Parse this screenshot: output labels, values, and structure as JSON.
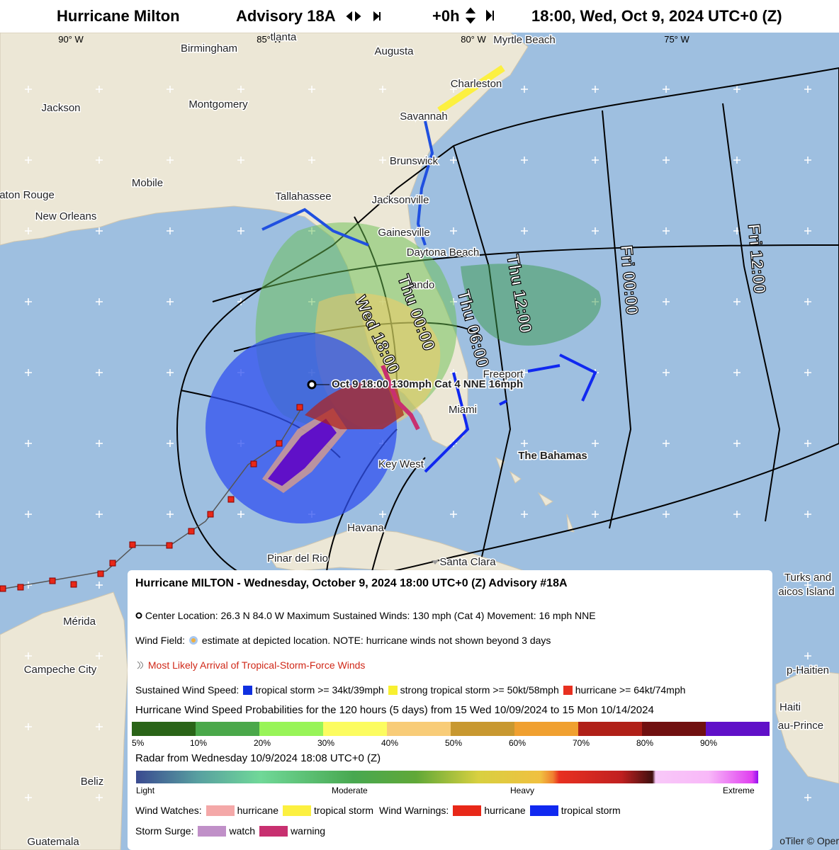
{
  "header": {
    "title": "Hurricane Milton",
    "advisory": "Advisory 18A",
    "offset": "+0h",
    "datetime": "18:00, Wed, Oct 9, 2024 UTC+0 (Z)"
  },
  "map": {
    "longitudes": [
      "90° W",
      "85° W",
      "80° W",
      "75° W"
    ],
    "places": [
      "Birmingham",
      "tlanta",
      "Augusta",
      "Myrtle Beach",
      "Jackson",
      "Montgomery",
      "Charleston",
      "Savannah",
      "Mobile",
      "Brunswick",
      "aton Rouge",
      "Tallahassee",
      "New Orleans",
      "Jacksonville",
      "Gainesville",
      "Daytona Beach",
      "lando",
      "Freeport",
      "Miami",
      "The Bahamas",
      "Key West",
      "Havana",
      "Pinar del Rio",
      "Santa Clara",
      "Turks and",
      "aicos Island",
      "Mérida",
      "Campeche City",
      "p-Haitien",
      "Haiti",
      "au-Prince",
      "Beliz",
      "Guatemala"
    ],
    "forecast_times": [
      "Wed 18:00",
      "Thu 00:00",
      "Thu 06:00",
      "Thu 12:00",
      "Fri 00:00",
      "Fri 12:00"
    ],
    "storm_label": "Oct 9 18:00 130mph Cat 4 NNE 16mph",
    "attribution": "oTiler © Oper"
  },
  "legend": {
    "title": "Hurricane MILTON -  Wednesday, October 9, 2024 18:00 UTC+0 (Z) Advisory #18A",
    "center": "Center Location: 26.3 N 84.0 W   Maximum Sustained Winds: 130 mph (Cat 4)   Movement: 16 mph NNE",
    "wind_field_label": "Wind Field:",
    "wind_field_text": "estimate at depicted location. NOTE: hurricane winds not shown beyond 3 days",
    "arrival": "Most Likely Arrival of Tropical-Storm-Force Winds",
    "sustained": {
      "label": "Sustained Wind Speed:",
      "items": [
        {
          "label": "tropical storm >= 34kt/39mph",
          "color": "#1030e0"
        },
        {
          "label": "strong tropical storm >= 50kt/58mph",
          "color": "#f8f030"
        },
        {
          "label": "hurricane >= 64kt/74mph",
          "color": "#e83020"
        }
      ]
    },
    "probability": {
      "title": "Hurricane Wind Speed Probabilities for the 120 hours (5 days) from 15 Wed 10/09/2024 to 15 Mon 10/14/2024",
      "colors": [
        "#2a6418",
        "#4aa84a",
        "#98f458",
        "#fcfc60",
        "#f8cc78",
        "#c89830",
        "#f0a030",
        "#b02018",
        "#701010",
        "#6010c8"
      ],
      "ticks": [
        "5%",
        "10%",
        "20%",
        "30%",
        "40%",
        "50%",
        "60%",
        "70%",
        "80%",
        "90%"
      ]
    },
    "radar": {
      "title": "Radar from Wednesday 10/9/2024 18:08 UTC+0 (Z)",
      "labels": [
        "Light",
        "Moderate",
        "Heavy",
        "Extreme"
      ]
    },
    "watches": {
      "label": "Wind Watches:",
      "items": [
        {
          "label": "hurricane",
          "color": "#f4a8a8"
        },
        {
          "label": "tropical storm",
          "color": "#fcf040"
        }
      ]
    },
    "warnings": {
      "label": "Wind Warnings:",
      "items": [
        {
          "label": "hurricane",
          "color": "#e82818"
        },
        {
          "label": "tropical storm",
          "color": "#1028f0"
        }
      ]
    },
    "surge": {
      "label": "Storm Surge:",
      "items": [
        {
          "label": "watch",
          "color": "#c090c8"
        },
        {
          "label": "warning",
          "color": "#c83070"
        }
      ]
    }
  }
}
